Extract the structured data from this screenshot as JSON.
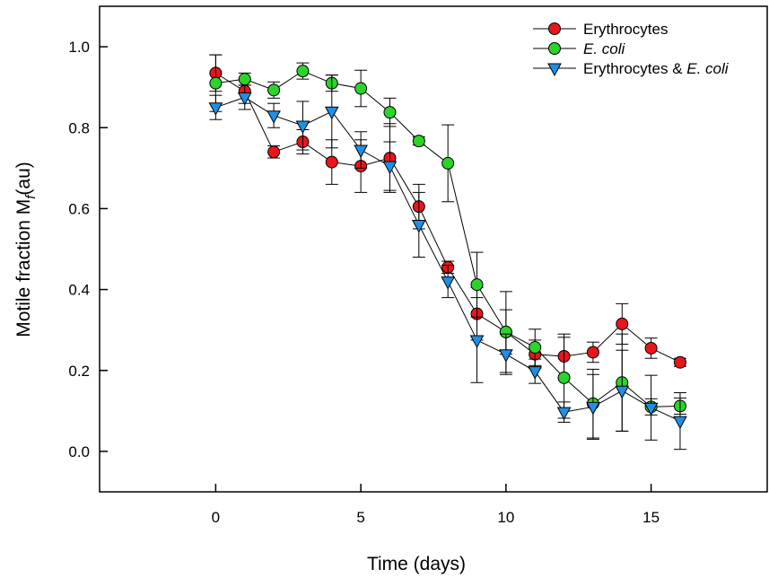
{
  "chart_data": {
    "type": "scatter",
    "xlabel": "Time (days)",
    "ylabel": {
      "prefix": "Motile fraction M",
      "subscript": "f",
      "suffix": "(au)"
    },
    "xlim": [
      -4,
      19
    ],
    "ylim": [
      -0.1,
      1.1
    ],
    "xticks": [
      0,
      5,
      10,
      15
    ],
    "yticks": [
      0.0,
      0.2,
      0.4,
      0.6,
      0.8,
      1.0
    ],
    "xtick_labels": [
      "0",
      "5",
      "10",
      "15"
    ],
    "ytick_labels": [
      "0.0",
      "0.2",
      "0.4",
      "0.6",
      "0.8",
      "1.0"
    ],
    "grid": false,
    "legend_position": "top-right",
    "series": [
      {
        "name": "Erythrocytes",
        "name_italic_part": "",
        "marker": "circle",
        "color": "#e8161b",
        "x": [
          0,
          1,
          2,
          3,
          4,
          5,
          6,
          7,
          8,
          9,
          10,
          11,
          12,
          13,
          14,
          15,
          16
        ],
        "y": [
          0.935,
          0.89,
          0.74,
          0.765,
          0.715,
          0.705,
          0.725,
          0.605,
          0.455,
          0.34,
          0.295,
          0.24,
          0.235,
          0.245,
          0.315,
          0.255,
          0.22
        ],
        "err": [
          0.045,
          0.03,
          0.015,
          0.03,
          0.055,
          0.065,
          0.085,
          0.055,
          0.015,
          0.065,
          0.055,
          0.035,
          0.055,
          0.025,
          0.05,
          0.025,
          0.01
        ]
      },
      {
        "name": "",
        "name_italic_part": "E. coli",
        "marker": "circle",
        "color": "#2bd42b",
        "x": [
          0,
          1,
          2,
          3,
          4,
          5,
          6,
          7,
          8,
          9,
          10,
          11,
          12,
          13,
          14,
          15,
          16
        ],
        "y": [
          0.91,
          0.92,
          0.893,
          0.94,
          0.91,
          0.897,
          0.838,
          0.767,
          0.712,
          0.412,
          0.295,
          0.257,
          0.182,
          0.118,
          0.17,
          0.11,
          0.112
        ],
        "err": [
          0.07,
          0.015,
          0.02,
          0.02,
          0.02,
          0.045,
          0.035,
          0.01,
          0.095,
          0.08,
          0.1,
          0.045,
          0.1,
          0.085,
          0.12,
          0.02,
          0.02
        ]
      },
      {
        "name": "Erythrocytes & ",
        "name_italic_part": "E. coli",
        "marker": "triangle-down",
        "color": "#1f8fe6",
        "x": [
          0,
          1,
          2,
          3,
          4,
          5,
          6,
          7,
          8,
          9,
          10,
          11,
          12,
          13,
          14,
          15,
          16
        ],
        "y": [
          0.85,
          0.875,
          0.83,
          0.805,
          0.84,
          0.745,
          0.705,
          0.56,
          0.42,
          0.275,
          0.24,
          0.198,
          0.097,
          0.11,
          0.15,
          0.108,
          0.075
        ],
        "err": [
          0.03,
          0.03,
          0.03,
          0.06,
          0.09,
          0.045,
          0.06,
          0.08,
          0.04,
          0.105,
          0.05,
          0.03,
          0.025,
          0.08,
          0.1,
          0.08,
          0.07
        ]
      }
    ]
  }
}
